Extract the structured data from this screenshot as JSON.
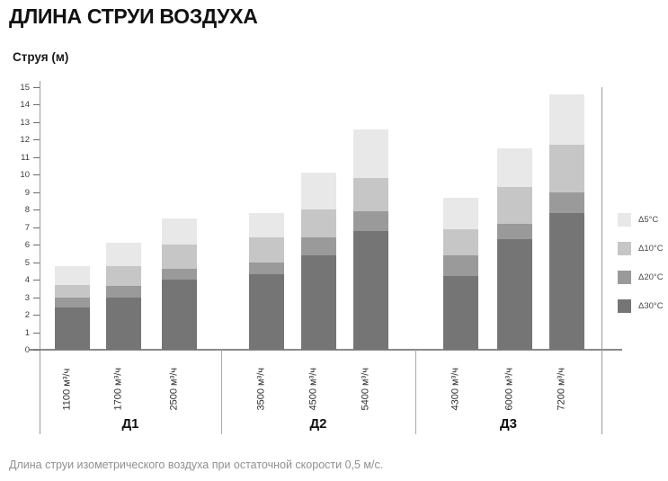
{
  "header": {
    "title": "ДЛИНА СТРУИ ВОЗДУХА"
  },
  "caption": "Длина струи изометрического воздуха при остаточной скорости 0,5 м/с.",
  "chart_data": {
    "type": "bar",
    "stacked": true,
    "title": "ДЛИНА СТРУИ ВОЗДУХА",
    "ylabel": "Струя (м)",
    "xlabel": "",
    "ylim": [
      0,
      15
    ],
    "ytick_step": 1,
    "grid": false,
    "legend_position": "right",
    "groups": [
      {
        "label": "Д1",
        "categories": [
          "1100 м³/ч",
          "1700 м³/ч",
          "2500 м³/ч"
        ]
      },
      {
        "label": "Д2",
        "categories": [
          "3500 м³/ч",
          "4500 м³/ч",
          "5400 м³/ч"
        ]
      },
      {
        "label": "Д3",
        "categories": [
          "4300 м³/ч",
          "6000 м³/ч",
          "7200 м³/ч"
        ]
      }
    ],
    "categories": [
      "1100 м³/ч",
      "1700 м³/ч",
      "2500 м³/ч",
      "3500 м³/ч",
      "4500 м³/ч",
      "5400 м³/ч",
      "4300 м³/ч",
      "6000 м³/ч",
      "7200 м³/ч"
    ],
    "series": [
      {
        "name": "Δ30°C",
        "color": "#757575",
        "values": [
          2.4,
          3.0,
          4.0,
          4.3,
          5.4,
          6.8,
          4.2,
          6.3,
          7.8
        ]
      },
      {
        "name": "Δ20°C",
        "color": "#9a9a9a",
        "values": [
          0.6,
          0.65,
          0.6,
          0.7,
          1.0,
          1.1,
          1.2,
          0.9,
          1.2
        ]
      },
      {
        "name": "Δ10°C",
        "color": "#c6c6c6",
        "values": [
          0.7,
          1.15,
          1.4,
          1.4,
          1.6,
          1.9,
          1.5,
          2.1,
          2.7
        ]
      },
      {
        "name": "Δ5°C",
        "color": "#e8e8e8",
        "values": [
          1.1,
          1.3,
          1.5,
          1.4,
          2.1,
          2.8,
          1.8,
          2.2,
          2.9
        ]
      }
    ],
    "stack_totals": [
      4.8,
      6.1,
      7.5,
      7.8,
      10.1,
      12.6,
      8.7,
      11.5,
      14.6
    ],
    "legend": [
      {
        "label": "Δ5°C",
        "color": "#e8e8e8"
      },
      {
        "label": "Δ10°C",
        "color": "#c6c6c6"
      },
      {
        "label": "Δ20°C",
        "color": "#9a9a9a"
      },
      {
        "label": "Δ30°C",
        "color": "#757575"
      }
    ]
  }
}
